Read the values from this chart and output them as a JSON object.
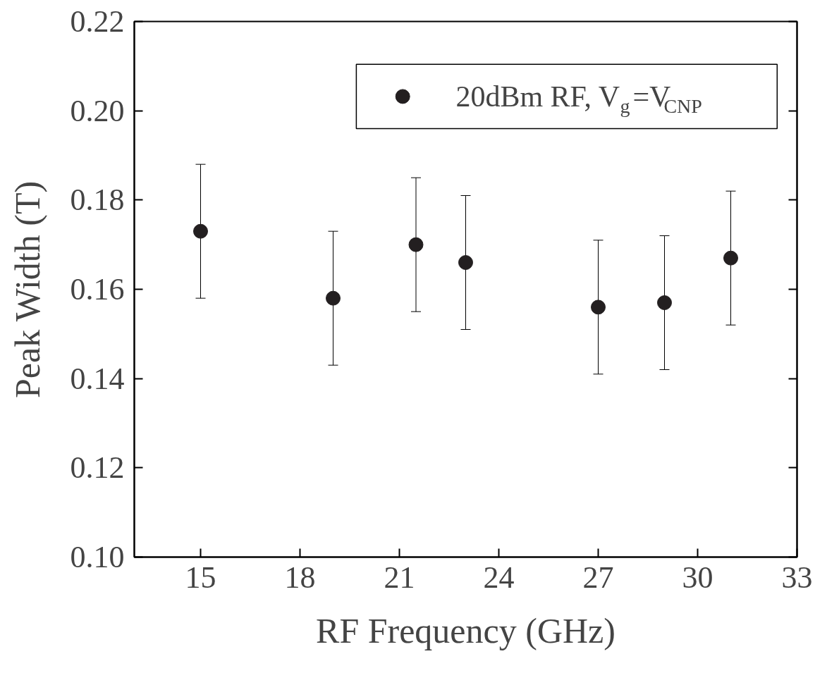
{
  "chart_data": {
    "type": "scatter",
    "xlabel": "RF Frequency (GHz)",
    "ylabel": "Peak Width (T)",
    "x": [
      15,
      19,
      21.5,
      23,
      27,
      29,
      31
    ],
    "series": [
      {
        "name": "20dBm RF, V$_{g}$=V$_{CNP}$",
        "color": "#231f20",
        "values": [
          0.173,
          0.158,
          0.17,
          0.166,
          0.156,
          0.157,
          0.167
        ],
        "errors": [
          0.015,
          0.015,
          0.015,
          0.015,
          0.015,
          0.015,
          0.015
        ]
      }
    ],
    "xlim": [
      13,
      33
    ],
    "xticks": [
      15,
      18,
      21,
      24,
      27,
      30,
      33
    ],
    "ylim": [
      0.1,
      0.22
    ],
    "yticks": [
      {
        "value": 0.1,
        "label": "0.10"
      },
      {
        "value": 0.12,
        "label": "0.12"
      },
      {
        "value": 0.14,
        "label": "0.14"
      },
      {
        "value": 0.16,
        "label": "0.16"
      },
      {
        "value": 0.18,
        "label": "0.18"
      },
      {
        "value": 0.2,
        "label": "0.20"
      },
      {
        "value": 0.22,
        "label": "0.22"
      }
    ],
    "marker": "circle",
    "legend": "top right",
    "grid": false
  }
}
